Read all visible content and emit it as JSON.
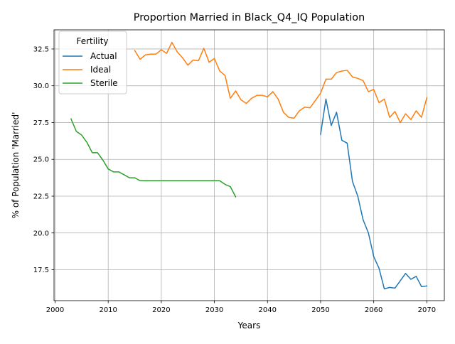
{
  "chart_data": {
    "type": "line",
    "title": "Proportion Married in Black_Q4_IQ Population",
    "xlabel": "Years",
    "ylabel": "% of Population 'Married'",
    "xlim": [
      1999.8,
      2073.3
    ],
    "ylim": [
      15.4,
      33.8
    ],
    "xticks": [
      2000,
      2010,
      2020,
      2030,
      2040,
      2050,
      2060,
      2070
    ],
    "yticks": [
      17.5,
      20.0,
      22.5,
      25.0,
      27.5,
      30.0,
      32.5
    ],
    "ytick_labels": [
      "17.5",
      "20.0",
      "22.5",
      "25.0",
      "27.5",
      "30.0",
      "32.5"
    ],
    "grid": true,
    "legend": {
      "title": "Fertility",
      "placement": "top-left"
    },
    "series": [
      {
        "name": "Actual",
        "color": "#1f77b4",
        "x": [
          2050,
          2051,
          2052,
          2053,
          2054,
          2055,
          2056,
          2057,
          2058,
          2059,
          2060,
          2061,
          2062,
          2063,
          2064,
          2065,
          2066,
          2067,
          2068,
          2069,
          2070
        ],
        "y": [
          26.7,
          29.1,
          27.3,
          28.2,
          26.3,
          26.1,
          23.5,
          22.5,
          20.9,
          20.0,
          18.4,
          17.6,
          16.2,
          16.3,
          16.25,
          16.75,
          17.25,
          16.85,
          17.05,
          16.35,
          16.4
        ]
      },
      {
        "name": "Ideal",
        "color": "#ff7f0e",
        "x": [
          2015,
          2016,
          2017,
          2018,
          2019,
          2020,
          2021,
          2022,
          2023,
          2024,
          2025,
          2026,
          2027,
          2028,
          2029,
          2030,
          2031,
          2032,
          2033,
          2034,
          2035,
          2036,
          2037,
          2038,
          2039,
          2040,
          2041,
          2042,
          2043,
          2044,
          2045,
          2046,
          2047,
          2048,
          2049,
          2050,
          2051,
          2052,
          2053,
          2054,
          2055,
          2056,
          2057,
          2058,
          2059,
          2060,
          2061,
          2062,
          2063,
          2064,
          2065,
          2066,
          2067,
          2068,
          2069,
          2070
        ],
        "y": [
          32.4,
          31.8,
          32.1,
          32.15,
          32.15,
          32.45,
          32.2,
          32.95,
          32.3,
          31.9,
          31.4,
          31.75,
          31.7,
          32.55,
          31.6,
          31.85,
          31.0,
          30.7,
          29.15,
          29.65,
          29.05,
          28.8,
          29.15,
          29.35,
          29.35,
          29.25,
          29.6,
          29.1,
          28.2,
          27.85,
          27.8,
          28.3,
          28.55,
          28.5,
          29.0,
          29.5,
          30.45,
          30.45,
          30.9,
          31.0,
          31.05,
          30.6,
          30.5,
          30.35,
          29.6,
          29.75,
          28.85,
          29.1,
          27.85,
          28.25,
          27.5,
          28.1,
          27.7,
          28.3,
          27.85,
          29.2
        ]
      },
      {
        "name": "Sterile",
        "color": "#2ca02c",
        "x": [
          2003,
          2004,
          2005,
          2006,
          2007,
          2008,
          2009,
          2010,
          2011,
          2012,
          2013,
          2014,
          2015,
          2016,
          2017,
          2018,
          2019,
          2020,
          2021,
          2022,
          2023,
          2024,
          2025,
          2026,
          2027,
          2028,
          2029,
          2030,
          2031,
          2032,
          2033,
          2034
        ],
        "y": [
          27.75,
          26.9,
          26.65,
          26.15,
          25.45,
          25.45,
          24.95,
          24.35,
          24.15,
          24.15,
          23.95,
          23.75,
          23.75,
          23.55,
          23.55,
          23.55,
          23.55,
          23.55,
          23.55,
          23.55,
          23.55,
          23.55,
          23.55,
          23.55,
          23.55,
          23.55,
          23.55,
          23.55,
          23.55,
          23.3,
          23.15,
          22.45
        ]
      }
    ]
  }
}
